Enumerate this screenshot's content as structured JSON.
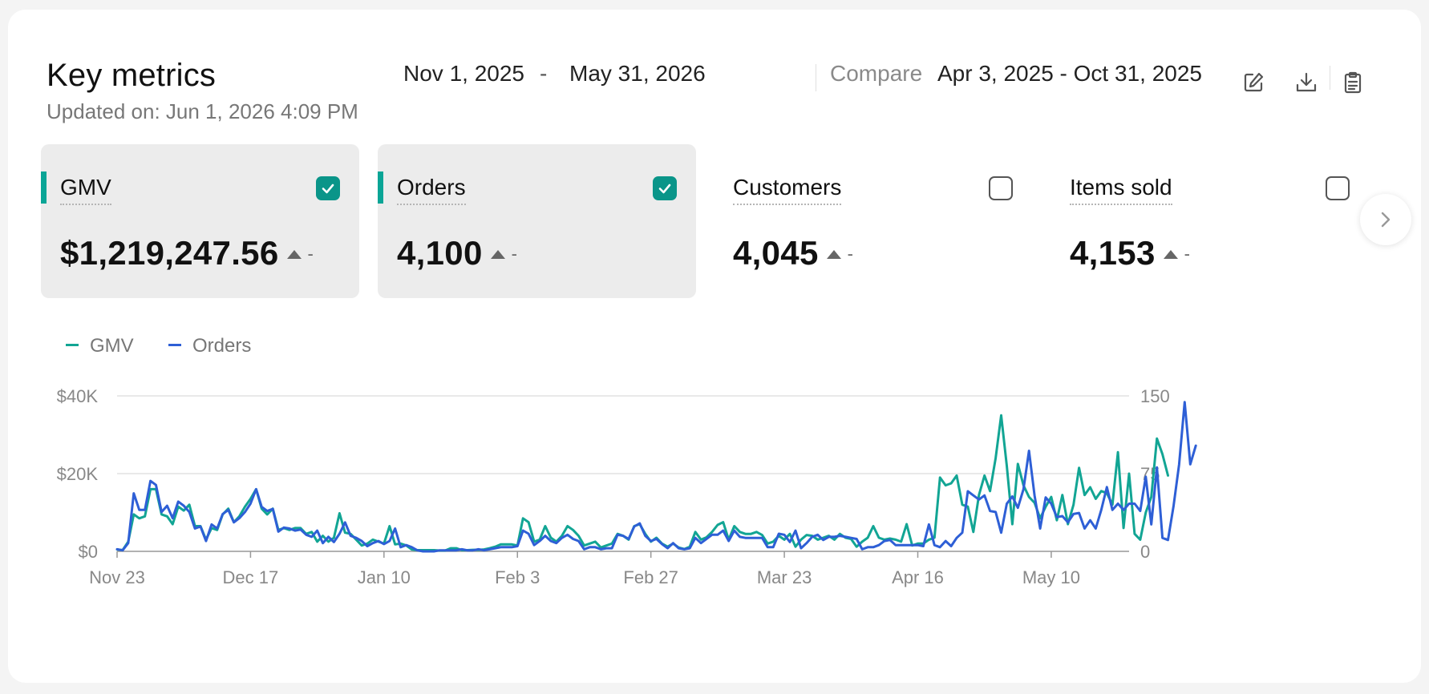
{
  "header": {
    "title": "Key metrics",
    "updated": "Updated on: Jun 1, 2026 4:09 PM",
    "date_start": "Nov 1, 2025",
    "date_sep": "-",
    "date_end": "May 31, 2026",
    "compare_label": "Compare",
    "compare_range": "Apr 3, 2025 - Oct 31, 2025",
    "icons": [
      "edit-icon",
      "download-icon",
      "clipboard-icon"
    ]
  },
  "metrics": [
    {
      "label": "GMV",
      "value": "$1,219,247.56",
      "trend": "-",
      "checked": true
    },
    {
      "label": "Orders",
      "value": "4,100",
      "trend": "-",
      "checked": true
    },
    {
      "label": "Customers",
      "value": "4,045",
      "trend": "-",
      "checked": false
    },
    {
      "label": "Items sold",
      "value": "4,153",
      "trend": "-",
      "checked": false
    }
  ],
  "colors": {
    "gmv": "#12a594",
    "orders": "#2e5fd6",
    "accent": "#0aa596",
    "checkbox": "#0a9589"
  },
  "chart_data": {
    "type": "line",
    "legend": [
      "GMV",
      "Orders"
    ],
    "x_ticks": [
      "Nov 23",
      "Dec 17",
      "Jan 10",
      "Feb 3",
      "Feb 27",
      "Mar 23",
      "Apr 16",
      "May 10"
    ],
    "x_tick_days": [
      0,
      24,
      48,
      72,
      96,
      120,
      144,
      168
    ],
    "left_axis": {
      "ticks": [
        "$0",
        "$20K",
        "$40K"
      ],
      "range": [
        0,
        40000
      ]
    },
    "right_axis": {
      "ticks": [
        "0",
        "75",
        "150"
      ],
      "range": [
        0,
        150
      ]
    },
    "grid": true,
    "series": [
      {
        "name": "GMV",
        "axis": "left",
        "values": [
          500,
          300,
          2500,
          9500,
          8500,
          9000,
          16000,
          16000,
          9500,
          9000,
          7000,
          11500,
          10500,
          12000,
          6500,
          6500,
          3000,
          6000,
          5500,
          9500,
          11000,
          7500,
          9000,
          11500,
          13500,
          16000,
          11000,
          9500,
          11000,
          5500,
          6000,
          5500,
          6000,
          6000,
          4500,
          5000,
          2500,
          4000,
          2500,
          3500,
          9800,
          4800,
          4500,
          3000,
          1500,
          2000,
          3000,
          2500,
          2000,
          6500,
          1800,
          2000,
          1500,
          500,
          300,
          300,
          300,
          300,
          200,
          200,
          800,
          800,
          300,
          300,
          400,
          400,
          500,
          800,
          1200,
          1800,
          1800,
          1800,
          1500,
          8500,
          7500,
          2500,
          3000,
          6500,
          3500,
          2500,
          4000,
          6500,
          5500,
          4000,
          1500,
          2000,
          2500,
          1000,
          1500,
          2000,
          4500,
          4000,
          3000,
          6500,
          7000,
          4500,
          2500,
          3500,
          2000,
          1200,
          2000,
          1000,
          600,
          1200,
          5000,
          3000,
          3600,
          5000,
          6800,
          7500,
          3000,
          6500,
          5000,
          4500,
          4500,
          5000,
          4200,
          2000,
          2500,
          4000,
          3000,
          4500,
          1200,
          3000,
          4200,
          4000,
          3000,
          3500,
          4000,
          3000,
          4500,
          3500,
          3200,
          1200,
          2500,
          3500,
          6500,
          3500,
          3000,
          3300,
          3000,
          2500,
          7000,
          1500,
          2000,
          2000,
          3000,
          3500,
          19000,
          17000,
          17500,
          19500,
          12000,
          11500,
          5000,
          14500,
          19500,
          15500,
          24000,
          35000,
          22000,
          7000,
          22500,
          17000,
          14000,
          12500,
          8500,
          11500,
          14000,
          8000,
          14500,
          7000,
          12000,
          21500,
          14500,
          16500,
          13500,
          15500,
          15000,
          12000,
          25500,
          6000,
          20000,
          4500,
          3000,
          10000,
          14000,
          29000,
          25000,
          19500
        ]
      },
      {
        "name": "Orders",
        "axis": "right",
        "values": [
          2,
          1,
          8,
          56,
          40,
          40,
          68,
          64,
          38,
          44,
          32,
          48,
          44,
          38,
          22,
          24,
          10,
          26,
          22,
          36,
          40,
          28,
          32,
          38,
          46,
          60,
          43,
          39,
          41,
          19,
          23,
          22,
          20,
          21,
          16,
          14,
          20,
          8,
          14,
          9,
          17,
          28,
          15,
          13,
          10,
          5,
          8,
          10,
          7,
          10,
          22,
          4,
          6,
          4,
          1,
          0,
          0,
          0,
          1,
          1,
          1,
          1,
          2,
          1,
          1,
          2,
          1,
          2,
          3,
          4,
          4,
          4,
          5,
          20,
          17,
          6,
          10,
          15,
          10,
          8,
          13,
          16,
          12,
          10,
          2,
          4,
          4,
          2,
          3,
          3,
          16,
          15,
          12,
          24,
          27,
          15,
          10,
          12,
          7,
          3,
          8,
          3,
          2,
          3,
          13,
          8,
          12,
          16,
          16,
          20,
          10,
          20,
          14,
          13,
          13,
          13,
          13,
          4,
          4,
          17,
          16,
          9,
          20,
          3,
          8,
          14,
          16,
          11,
          14,
          14,
          15,
          14,
          13,
          12,
          2,
          4,
          4,
          6,
          10,
          11,
          6,
          6,
          6,
          6,
          6,
          5,
          26,
          6,
          4,
          10,
          5,
          13,
          18,
          58,
          54,
          50,
          54,
          39,
          38,
          18,
          46,
          53,
          42,
          60,
          97,
          54,
          22,
          52,
          46,
          33,
          34,
          28,
          36,
          37,
          22,
          30,
          22,
          40,
          62,
          40,
          46,
          40,
          46,
          46,
          39,
          72,
          26,
          81,
          13,
          11,
          44,
          84,
          144,
          84,
          102
        ]
      }
    ]
  }
}
